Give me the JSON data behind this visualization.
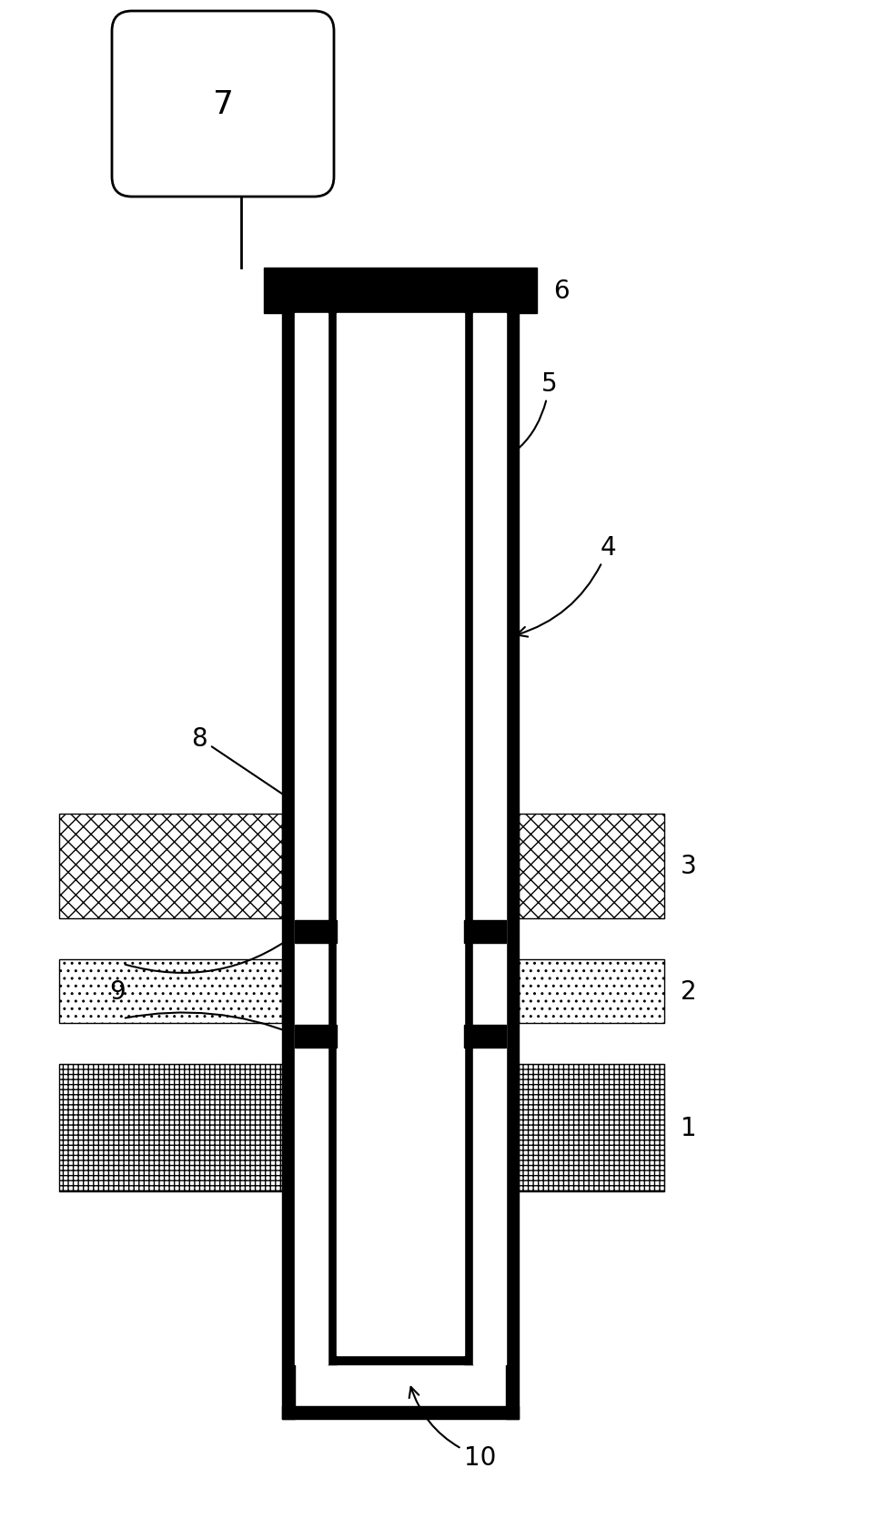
{
  "fig_width": 9.77,
  "fig_height": 16.81,
  "bg_color": "#ffffff",
  "label_7": "7",
  "label_6": "6",
  "label_5": "5",
  "label_4": "4",
  "label_3": "3",
  "label_2": "2",
  "label_1": "1",
  "label_8": "8",
  "label_9": "9",
  "label_10": "10",
  "font_size": 20
}
